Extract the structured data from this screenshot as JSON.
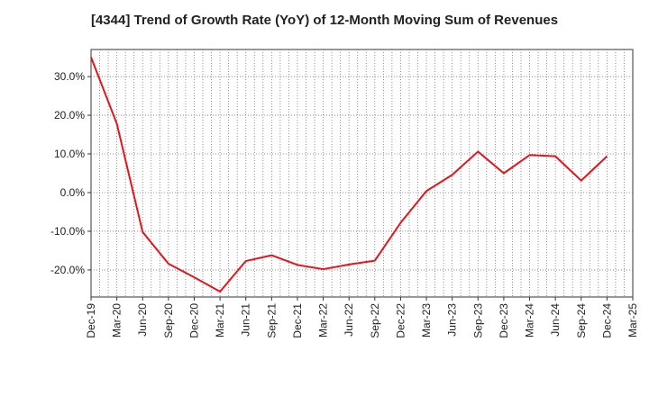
{
  "chart_data": {
    "type": "line",
    "title": "[4344]  Trend of Growth Rate (YoY) of 12-Month Moving Sum of Revenues",
    "xlabel": "",
    "ylabel": "",
    "x_tick_labels": [
      "Dec-19",
      "Mar-20",
      "Jun-20",
      "Sep-20",
      "Dec-20",
      "Mar-21",
      "Jun-21",
      "Sep-21",
      "Dec-21",
      "Mar-22",
      "Jun-22",
      "Sep-22",
      "Dec-22",
      "Mar-23",
      "Jun-23",
      "Sep-23",
      "Dec-23",
      "Mar-24",
      "Jun-24",
      "Sep-24",
      "Dec-24",
      "Mar-25"
    ],
    "y_ticks": [
      -20,
      -10,
      0,
      10,
      20,
      30
    ],
    "y_tick_labels": [
      "-20.0%",
      "-10.0%",
      "0.0%",
      "10.0%",
      "20.0%",
      "30.0%"
    ],
    "ylim": [
      -27,
      37
    ],
    "grid": true,
    "line_color": "#e8141b",
    "series": [
      {
        "x": [
          "Dec-19",
          "Mar-20",
          "Jun-20",
          "Sep-20",
          "Dec-20",
          "Mar-21",
          "Jun-21",
          "Sep-21",
          "Dec-21",
          "Mar-22",
          "Jun-22",
          "Sep-22",
          "Dec-22",
          "Mar-23",
          "Jun-23",
          "Sep-23",
          "Dec-23",
          "Mar-24",
          "Jun-24",
          "Sep-24",
          "Dec-24"
        ],
        "values": [
          35.0,
          17.8,
          -10.2,
          -18.4,
          -21.9,
          -25.6,
          -17.7,
          -16.2,
          -18.7,
          -19.8,
          -18.6,
          -17.6,
          -7.8,
          0.4,
          4.6,
          10.6,
          5.0,
          9.7,
          9.4,
          3.1,
          9.4
        ]
      }
    ]
  }
}
